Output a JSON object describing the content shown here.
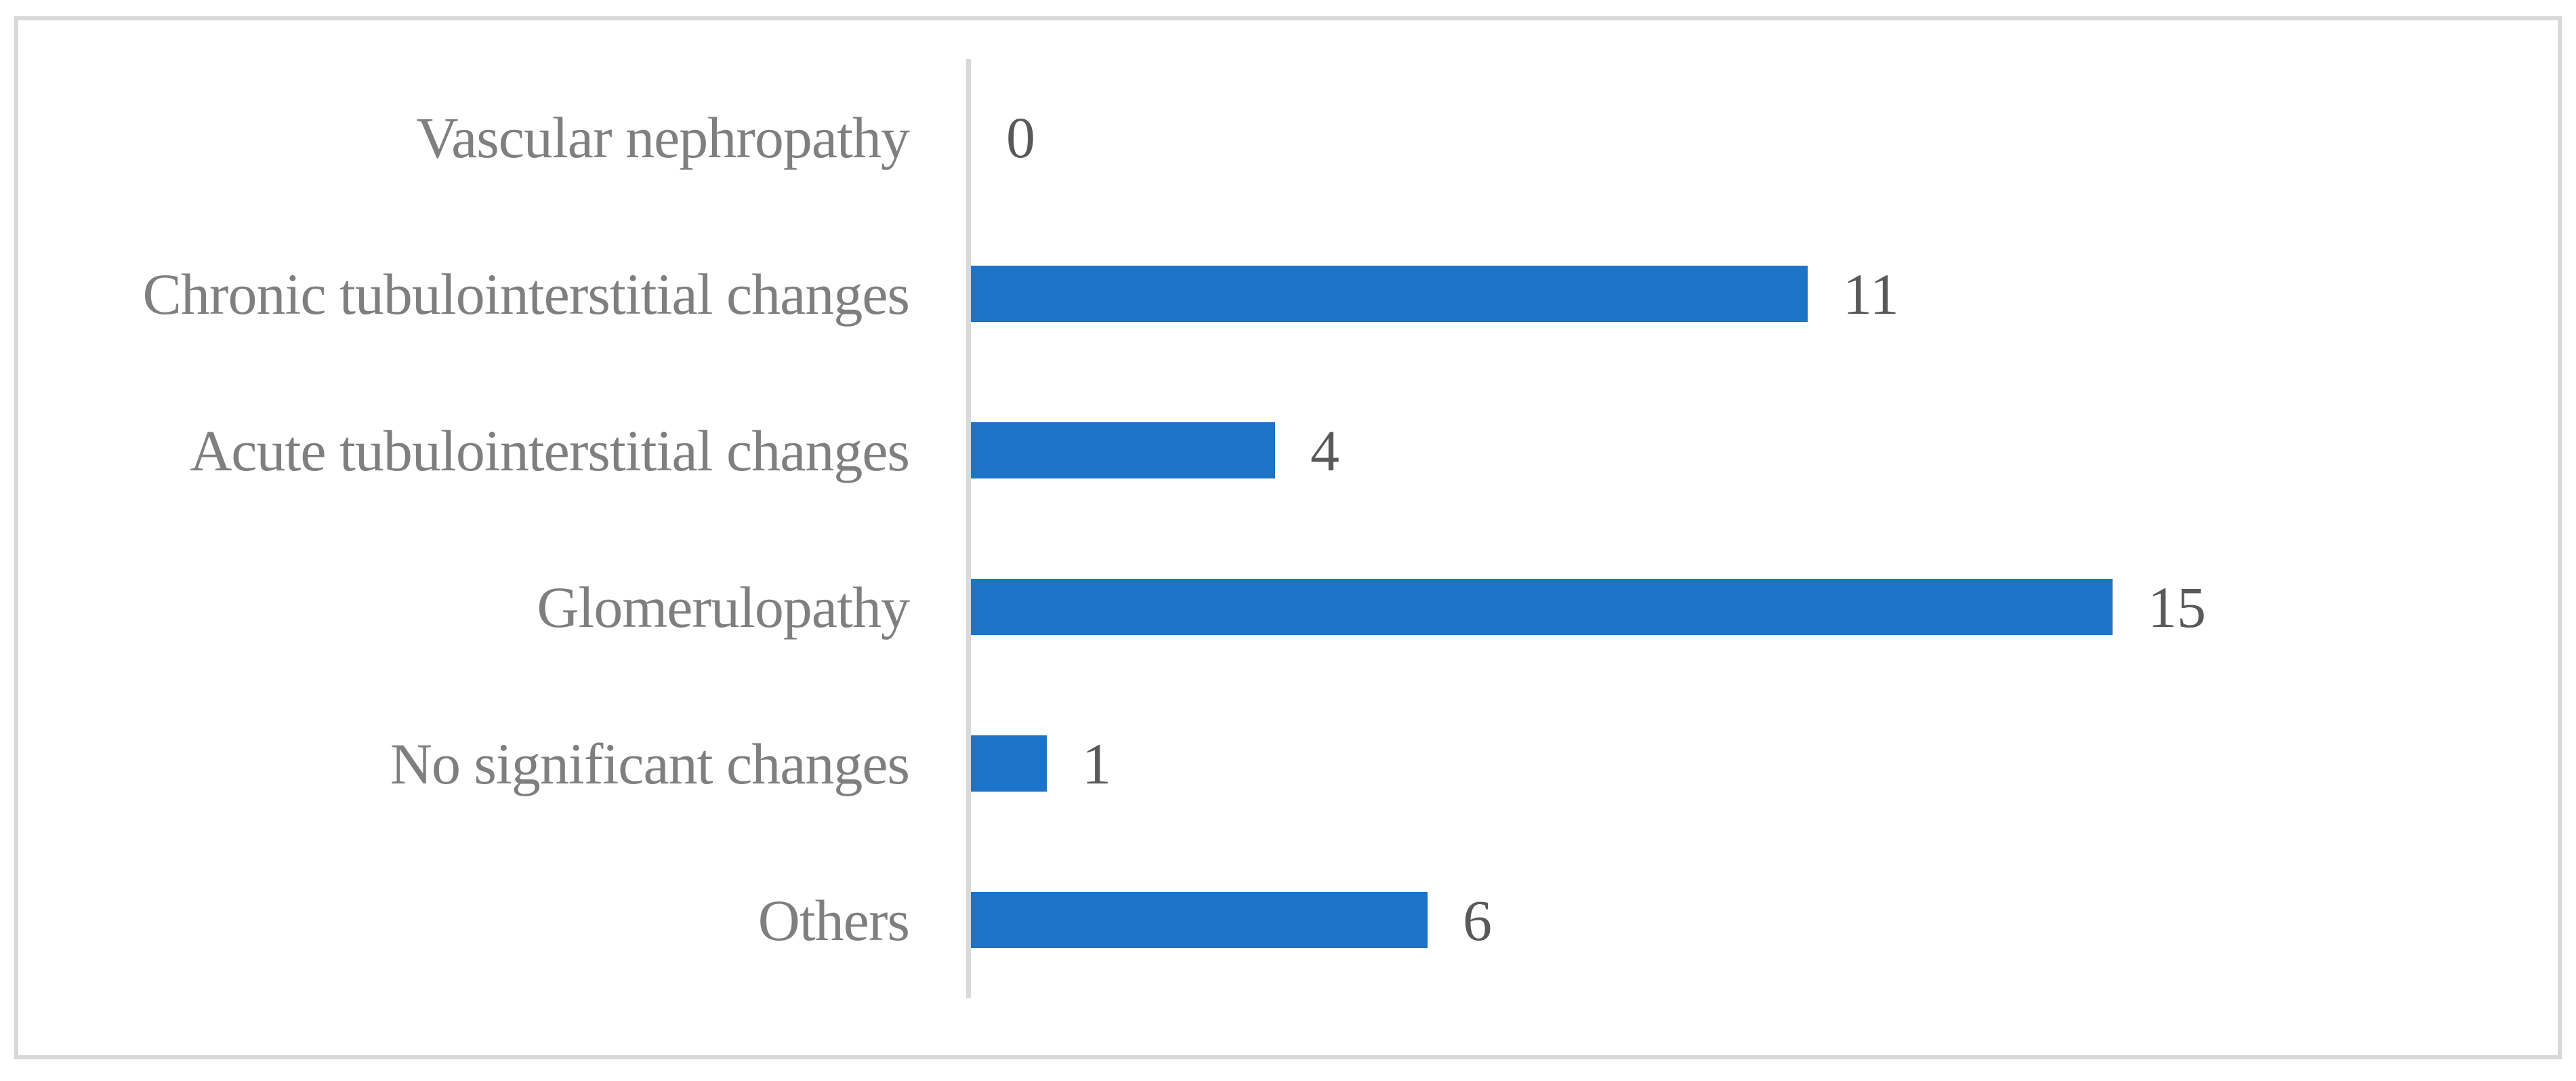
{
  "chart_data": {
    "type": "bar",
    "orientation": "horizontal",
    "title": "",
    "xlabel": "",
    "ylabel": "",
    "categories": [
      "Vascular nephropathy",
      "Chronic tubulointerstitial changes",
      "Acute tubulointerstitial changes",
      "Glomerulopathy",
      "No significant changes",
      "Others"
    ],
    "values": [
      0,
      11,
      4,
      15,
      1,
      6
    ],
    "data_labels": [
      "0",
      "11",
      "4",
      "15",
      "1",
      "6"
    ],
    "xlim": [
      0,
      16
    ],
    "grid": false,
    "legend": false,
    "axis_ticks_visible": false,
    "colors": {
      "bar": "#1B74C8",
      "axis_line": "#D9D9D9",
      "frame_border": "#D8D8D8",
      "category_label": "#7F7F7F",
      "value_label": "#595959",
      "background": "#FFFFFF"
    }
  }
}
